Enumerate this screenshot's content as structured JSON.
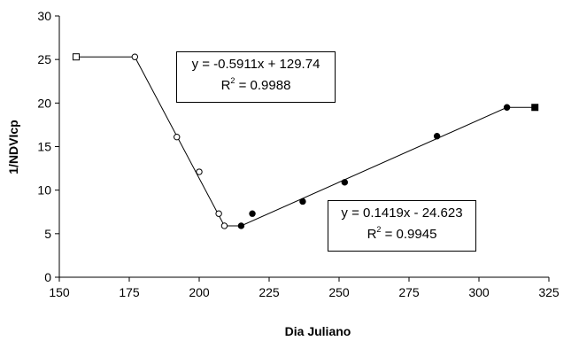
{
  "chart_data": {
    "type": "scatter",
    "xlabel": "Dia Juliano",
    "ylabel": "1/NDVIcp",
    "xlim": [
      150,
      325
    ],
    "ylim": [
      0,
      30
    ],
    "xticks": [
      "150",
      "175",
      "200",
      "225",
      "250",
      "275",
      "300",
      "325"
    ],
    "yticks": [
      "0",
      "5",
      "10",
      "15",
      "20",
      "25",
      "30"
    ],
    "grid": false,
    "legend": "none",
    "series": [
      {
        "marker": "open-circle",
        "color": "#000000",
        "x": [
          177,
          192,
          200,
          207,
          209
        ],
        "y": [
          25.3,
          16.1,
          12.1,
          7.3,
          5.9
        ]
      },
      {
        "marker": "filled-circle",
        "color": "#000000",
        "x": [
          215,
          219,
          237,
          252,
          285,
          310
        ],
        "y": [
          5.9,
          7.3,
          8.7,
          10.9,
          16.2,
          19.5
        ]
      },
      {
        "marker": "open-square",
        "color": "#000000",
        "x": [
          156
        ],
        "y": [
          25.3
        ]
      },
      {
        "marker": "filled-square",
        "color": "#000000",
        "x": [
          320
        ],
        "y": [
          19.5
        ]
      }
    ],
    "lines": [
      {
        "x": [
          156,
          177
        ],
        "y": [
          25.3,
          25.3
        ]
      },
      {
        "x": [
          177,
          209
        ],
        "y": [
          25.3,
          5.9
        ]
      },
      {
        "x": [
          209,
          215
        ],
        "y": [
          5.9,
          5.9
        ]
      },
      {
        "x": [
          215,
          310
        ],
        "y": [
          5.9,
          19.5
        ]
      },
      {
        "x": [
          310,
          320
        ],
        "y": [
          19.5,
          19.5
        ]
      }
    ],
    "annotations": [
      {
        "equation": "y = -0.5911x + 129.74",
        "r2_label": "R",
        "r2_sup": "2",
        "r2_value": " = 0.9988"
      },
      {
        "equation": "y = 0.1419x - 24.623",
        "r2_label": "R",
        "r2_sup": "2",
        "r2_value": " = 0.9945"
      }
    ]
  }
}
